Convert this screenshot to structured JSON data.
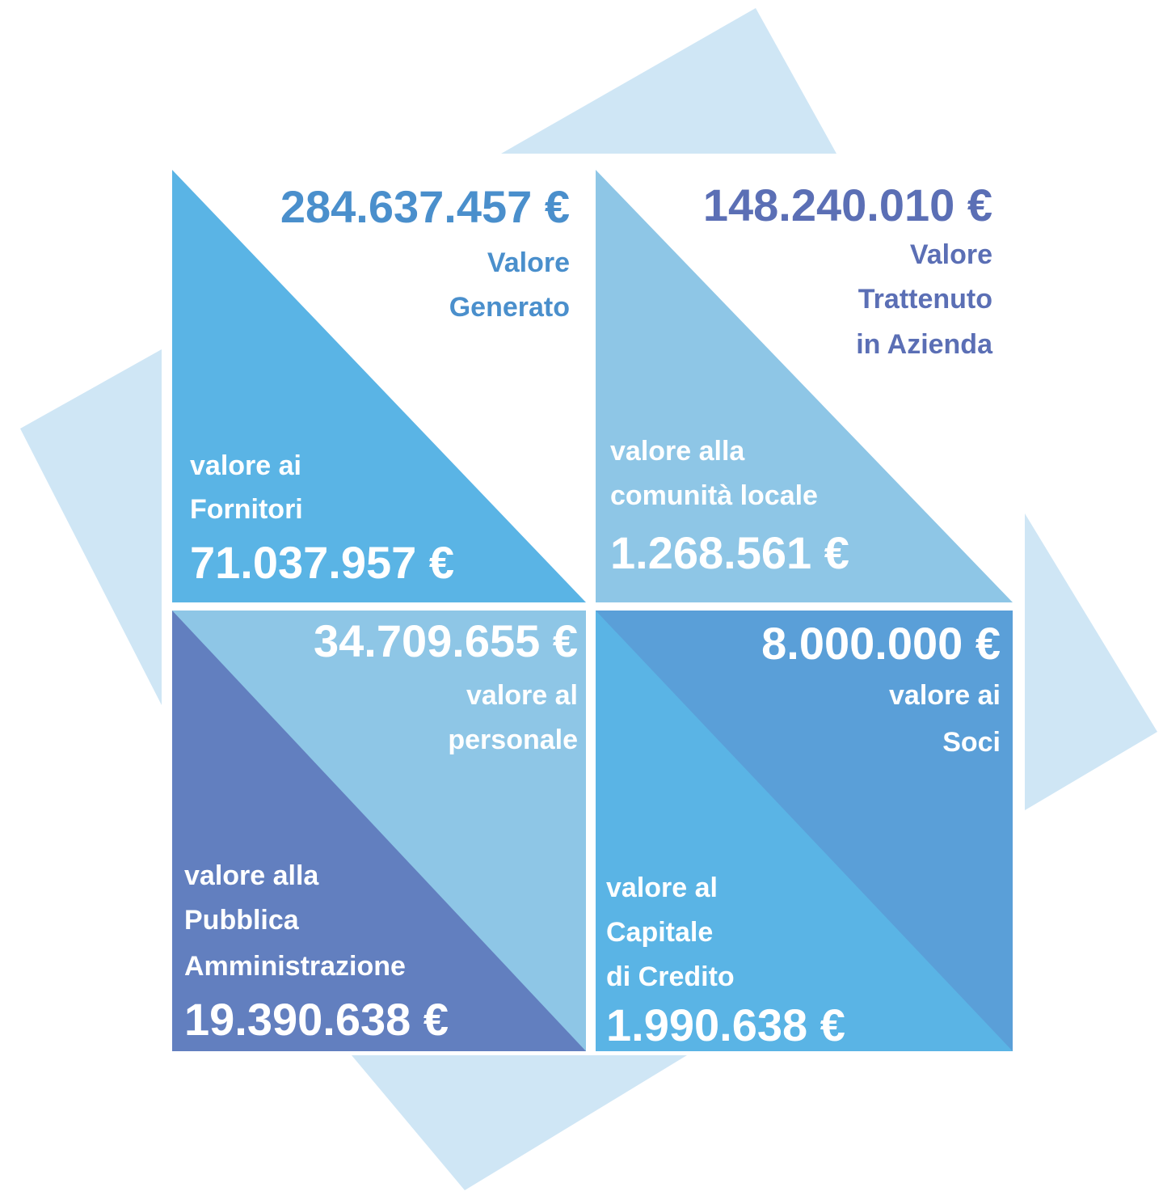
{
  "quadrants": [
    {
      "heading": {
        "amount": "284.637.457 €",
        "lines": [
          "Valore",
          "Generato"
        ]
      },
      "corner": {
        "lines": [
          "valore ai",
          "Fornitori"
        ],
        "amount": "71.037.957 €"
      }
    },
    {
      "heading": {
        "amount": "148.240.010 €",
        "lines": [
          "Valore",
          "Trattenuto",
          "in Azienda"
        ]
      },
      "corner": {
        "lines": [
          "valore alla",
          "comunità locale"
        ],
        "amount": "1.268.561 €"
      }
    },
    {
      "heading": {
        "amount": "34.709.655 €",
        "lines": [
          "valore al",
          "personale"
        ]
      },
      "corner": {
        "lines": [
          "valore alla",
          "Pubblica",
          "Amministrazione"
        ],
        "amount": "19.390.638 €"
      }
    },
    {
      "heading": {
        "amount": "8.000.000 €",
        "lines": [
          "valore ai",
          "Soci"
        ]
      },
      "corner": {
        "lines": [
          "valore al",
          "Capitale",
          "di Credito"
        ],
        "amount": "1.990.638 €"
      }
    }
  ]
}
